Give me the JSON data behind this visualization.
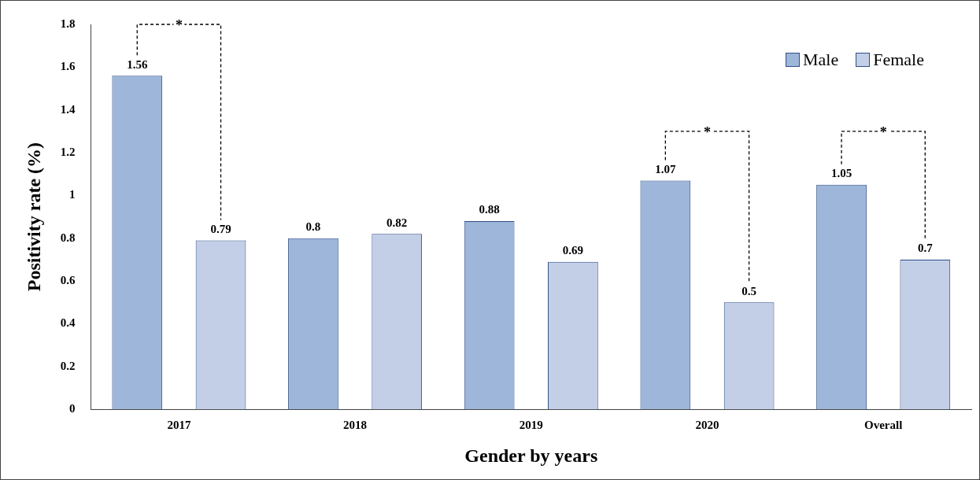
{
  "chart_data": {
    "type": "bar",
    "xlabel": "Gender by years",
    "ylabel": "Positivity rate (%)",
    "categories": [
      "2017",
      "2018",
      "2019",
      "2020",
      "Overall"
    ],
    "series": [
      {
        "name": "Male",
        "color": "#9db6d9",
        "values": [
          1.56,
          0.8,
          0.88,
          1.07,
          1.05
        ]
      },
      {
        "name": "Female",
        "color": "#c2cfe6",
        "values": [
          0.79,
          0.82,
          0.69,
          0.5,
          0.7
        ]
      }
    ],
    "ylim": [
      0,
      1.8
    ],
    "yticks": [
      0,
      0.2,
      0.4,
      0.6,
      0.8,
      1,
      1.2,
      1.4,
      1.6,
      1.8
    ],
    "grid": false,
    "legend": "top right",
    "data_labels": true,
    "annotations": [
      {
        "text": "*",
        "x": "2017",
        "y": 1.8
      },
      {
        "text": "*",
        "x": "2020",
        "y": 1.3
      },
      {
        "text": "*",
        "x": "Overall",
        "y": 1.3
      }
    ]
  }
}
